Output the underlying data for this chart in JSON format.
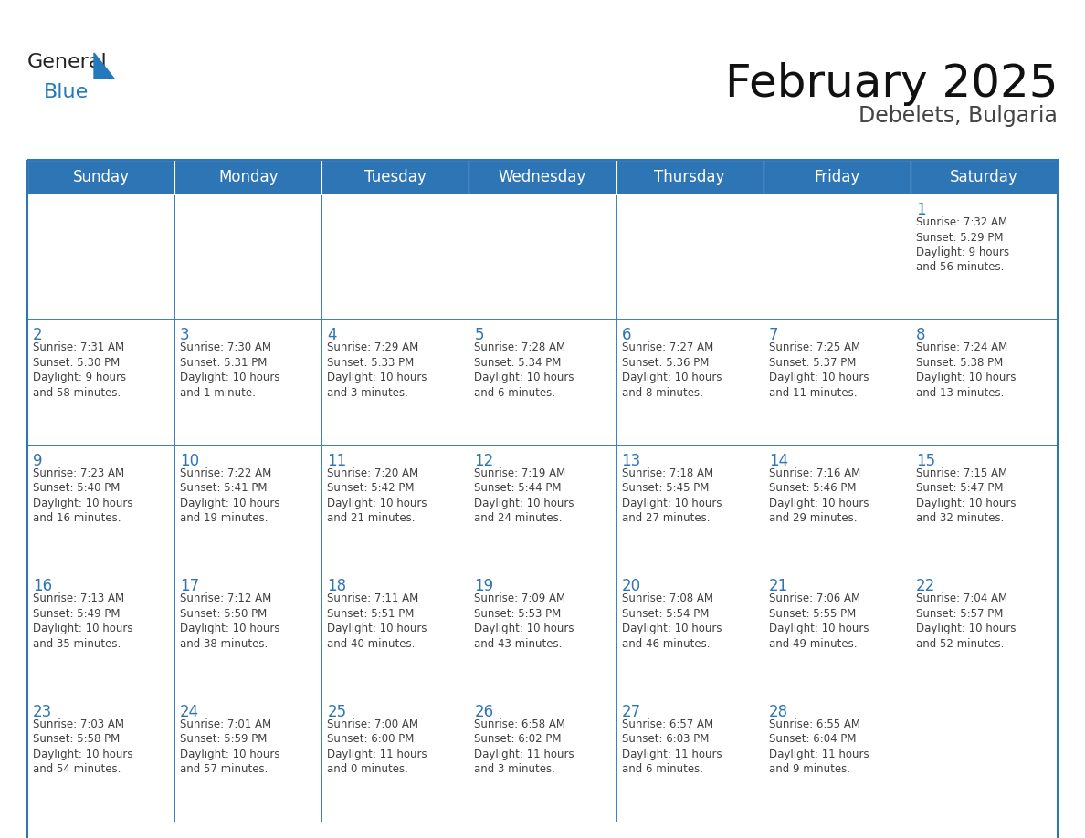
{
  "title": "February 2025",
  "subtitle": "Debelets, Bulgaria",
  "header_bg": "#2E75B6",
  "header_text_color": "#FFFFFF",
  "cell_bg": "#FFFFFF",
  "border_color": "#2E75B6",
  "day_number_color": "#2E75B6",
  "text_color": "#404040",
  "days_of_week": [
    "Sunday",
    "Monday",
    "Tuesday",
    "Wednesday",
    "Thursday",
    "Friday",
    "Saturday"
  ],
  "calendar_data": [
    [
      null,
      null,
      null,
      null,
      null,
      null,
      {
        "day": "1",
        "sunrise": "7:32 AM",
        "sunset": "5:29 PM",
        "daylight": "9 hours\nand 56 minutes."
      }
    ],
    [
      {
        "day": "2",
        "sunrise": "7:31 AM",
        "sunset": "5:30 PM",
        "daylight": "9 hours\nand 58 minutes."
      },
      {
        "day": "3",
        "sunrise": "7:30 AM",
        "sunset": "5:31 PM",
        "daylight": "10 hours\nand 1 minute."
      },
      {
        "day": "4",
        "sunrise": "7:29 AM",
        "sunset": "5:33 PM",
        "daylight": "10 hours\nand 3 minutes."
      },
      {
        "day": "5",
        "sunrise": "7:28 AM",
        "sunset": "5:34 PM",
        "daylight": "10 hours\nand 6 minutes."
      },
      {
        "day": "6",
        "sunrise": "7:27 AM",
        "sunset": "5:36 PM",
        "daylight": "10 hours\nand 8 minutes."
      },
      {
        "day": "7",
        "sunrise": "7:25 AM",
        "sunset": "5:37 PM",
        "daylight": "10 hours\nand 11 minutes."
      },
      {
        "day": "8",
        "sunrise": "7:24 AM",
        "sunset": "5:38 PM",
        "daylight": "10 hours\nand 13 minutes."
      }
    ],
    [
      {
        "day": "9",
        "sunrise": "7:23 AM",
        "sunset": "5:40 PM",
        "daylight": "10 hours\nand 16 minutes."
      },
      {
        "day": "10",
        "sunrise": "7:22 AM",
        "sunset": "5:41 PM",
        "daylight": "10 hours\nand 19 minutes."
      },
      {
        "day": "11",
        "sunrise": "7:20 AM",
        "sunset": "5:42 PM",
        "daylight": "10 hours\nand 21 minutes."
      },
      {
        "day": "12",
        "sunrise": "7:19 AM",
        "sunset": "5:44 PM",
        "daylight": "10 hours\nand 24 minutes."
      },
      {
        "day": "13",
        "sunrise": "7:18 AM",
        "sunset": "5:45 PM",
        "daylight": "10 hours\nand 27 minutes."
      },
      {
        "day": "14",
        "sunrise": "7:16 AM",
        "sunset": "5:46 PM",
        "daylight": "10 hours\nand 29 minutes."
      },
      {
        "day": "15",
        "sunrise": "7:15 AM",
        "sunset": "5:47 PM",
        "daylight": "10 hours\nand 32 minutes."
      }
    ],
    [
      {
        "day": "16",
        "sunrise": "7:13 AM",
        "sunset": "5:49 PM",
        "daylight": "10 hours\nand 35 minutes."
      },
      {
        "day": "17",
        "sunrise": "7:12 AM",
        "sunset": "5:50 PM",
        "daylight": "10 hours\nand 38 minutes."
      },
      {
        "day": "18",
        "sunrise": "7:11 AM",
        "sunset": "5:51 PM",
        "daylight": "10 hours\nand 40 minutes."
      },
      {
        "day": "19",
        "sunrise": "7:09 AM",
        "sunset": "5:53 PM",
        "daylight": "10 hours\nand 43 minutes."
      },
      {
        "day": "20",
        "sunrise": "7:08 AM",
        "sunset": "5:54 PM",
        "daylight": "10 hours\nand 46 minutes."
      },
      {
        "day": "21",
        "sunrise": "7:06 AM",
        "sunset": "5:55 PM",
        "daylight": "10 hours\nand 49 minutes."
      },
      {
        "day": "22",
        "sunrise": "7:04 AM",
        "sunset": "5:57 PM",
        "daylight": "10 hours\nand 52 minutes."
      }
    ],
    [
      {
        "day": "23",
        "sunrise": "7:03 AM",
        "sunset": "5:58 PM",
        "daylight": "10 hours\nand 54 minutes."
      },
      {
        "day": "24",
        "sunrise": "7:01 AM",
        "sunset": "5:59 PM",
        "daylight": "10 hours\nand 57 minutes."
      },
      {
        "day": "25",
        "sunrise": "7:00 AM",
        "sunset": "6:00 PM",
        "daylight": "11 hours\nand 0 minutes."
      },
      {
        "day": "26",
        "sunrise": "6:58 AM",
        "sunset": "6:02 PM",
        "daylight": "11 hours\nand 3 minutes."
      },
      {
        "day": "27",
        "sunrise": "6:57 AM",
        "sunset": "6:03 PM",
        "daylight": "11 hours\nand 6 minutes."
      },
      {
        "day": "28",
        "sunrise": "6:55 AM",
        "sunset": "6:04 PM",
        "daylight": "11 hours\nand 9 minutes."
      },
      null
    ]
  ],
  "logo_general_color": "#222222",
  "logo_blue_color": "#2479BD",
  "title_fontsize": 36,
  "subtitle_fontsize": 17,
  "header_fontsize": 12,
  "day_num_fontsize": 12,
  "cell_text_fontsize": 8.5
}
